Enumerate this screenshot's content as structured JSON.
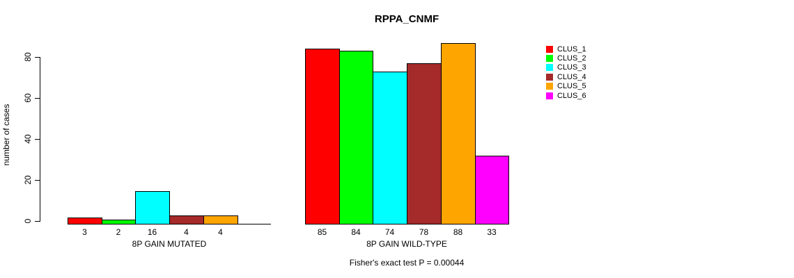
{
  "title": "RPPA_CNMF",
  "y_axis": {
    "label": "number of cases"
  },
  "footer": "Fisher's exact test P = 0.00044",
  "legend": {
    "items": [
      {
        "label": "CLUS_1",
        "color": "#FF0000"
      },
      {
        "label": "CLUS_2",
        "color": "#00FF00"
      },
      {
        "label": "CLUS_3",
        "color": "#00FFFF"
      },
      {
        "label": "CLUS_4",
        "color": "#A52A2A"
      },
      {
        "label": "CLUS_5",
        "color": "#FFA500"
      },
      {
        "label": "CLUS_6",
        "color": "#FF00FF"
      }
    ]
  },
  "chart_data": {
    "type": "bar",
    "title": "RPPA_CNMF",
    "xlabel": "",
    "ylabel": "number of cases",
    "ylim": [
      0,
      90
    ],
    "yticks": [
      0,
      20,
      40,
      60,
      80
    ],
    "grid": false,
    "legend_position": "right",
    "categories": [
      "8P GAIN MUTATED",
      "8P GAIN WILD-TYPE"
    ],
    "series": [
      {
        "name": "CLUS_1",
        "color": "#FF0000",
        "values": [
          3,
          85
        ]
      },
      {
        "name": "CLUS_2",
        "color": "#00FF00",
        "values": [
          2,
          84
        ]
      },
      {
        "name": "CLUS_3",
        "color": "#00FFFF",
        "values": [
          16,
          74
        ]
      },
      {
        "name": "CLUS_4",
        "color": "#A52A2A",
        "values": [
          4,
          78
        ]
      },
      {
        "name": "CLUS_5",
        "color": "#FFA500",
        "values": [
          4,
          88
        ]
      },
      {
        "name": "CLUS_6",
        "color": "#FF00FF",
        "values": [
          0,
          33
        ]
      }
    ],
    "bar_value_labels_shown": true,
    "zero_bars_hidden": true,
    "annotation": "Fisher's exact test P = 0.00044"
  }
}
